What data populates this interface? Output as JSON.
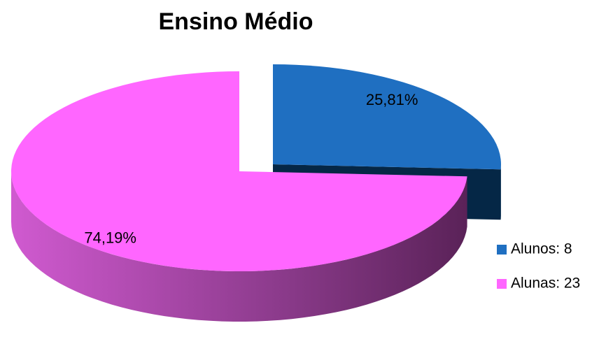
{
  "chart_data": {
    "type": "pie",
    "title": "Ensino Médio",
    "categories": [
      "Alunos: 8",
      "Alunas: 23"
    ],
    "values": [
      25.81,
      74.19
    ],
    "value_labels": [
      "25,81%",
      "74,19%"
    ],
    "colors": [
      "#1f6fc1",
      "#ff66ff"
    ],
    "legend": "right"
  }
}
